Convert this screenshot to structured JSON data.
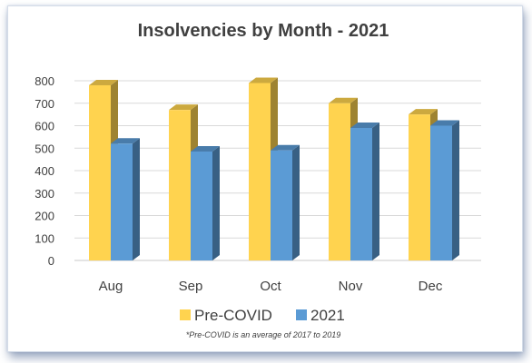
{
  "chart_data": {
    "type": "bar",
    "title": "Insolvencies by Month - 2021",
    "xlabel": "",
    "ylabel": "",
    "categories": [
      "Aug",
      "Sep",
      "Oct",
      "Nov",
      "Dec"
    ],
    "series": [
      {
        "name": "Pre-COVID",
        "values": [
          780,
          670,
          790,
          700,
          650
        ],
        "color": "#FFD34F"
      },
      {
        "name": "2021",
        "values": [
          520,
          485,
          490,
          590,
          600
        ],
        "color": "#5B9BD5"
      }
    ],
    "ylim": [
      0,
      800
    ],
    "yticks": [
      "0",
      "100",
      "200",
      "300",
      "400",
      "500",
      "600",
      "700",
      "800"
    ],
    "grid": true,
    "legend_position": "bottom",
    "footnote": "*Pre-COVID is an average of 2017 to 2019"
  }
}
